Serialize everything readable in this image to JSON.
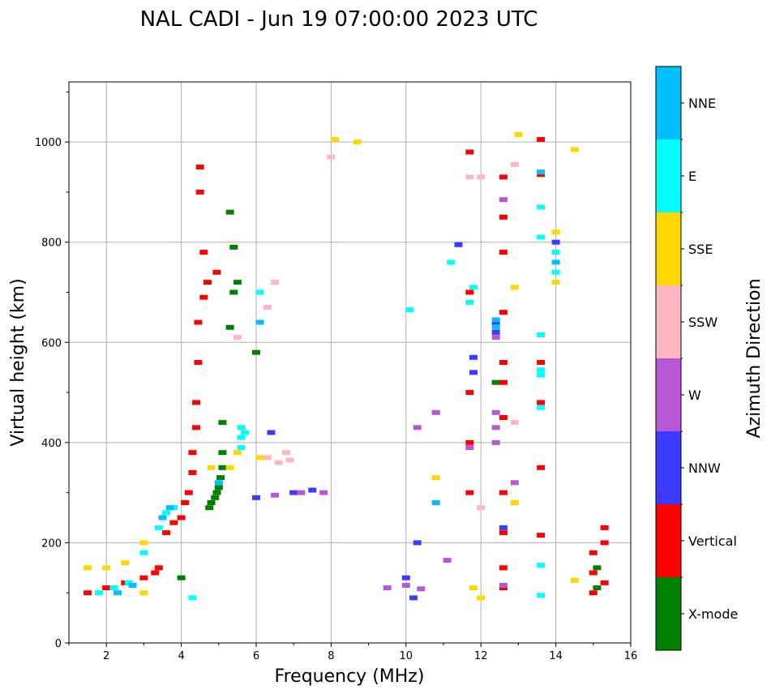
{
  "chart_data": {
    "type": "scatter",
    "title": "NAL CADI - Jun 19 07:00:00 2023 UTC",
    "xlabel": "Frequency (MHz)",
    "ylabel": "Virtual height (km)",
    "xlim": [
      1,
      16
    ],
    "ylim": [
      0,
      1120
    ],
    "x_ticks": [
      2,
      4,
      6,
      8,
      10,
      12,
      14,
      16
    ],
    "y_ticks": [
      0,
      200,
      400,
      600,
      800,
      1000
    ],
    "grid": true,
    "colorbar": {
      "label": "Azimuth Direction",
      "categories": [
        {
          "name": "X-mode",
          "color": "#008000"
        },
        {
          "name": "Vertical",
          "color": "#ff0000"
        },
        {
          "name": "NNW",
          "color": "#3b3bff"
        },
        {
          "name": "W",
          "color": "#b757d8"
        },
        {
          "name": "SSW",
          "color": "#ffb6c1"
        },
        {
          "name": "SSE",
          "color": "#ffd700"
        },
        {
          "name": "E",
          "color": "#00ffff"
        },
        {
          "name": "NNE",
          "color": "#00bfff"
        }
      ]
    },
    "series": [
      {
        "name": "X-mode",
        "points": [
          [
            4.0,
            130
          ],
          [
            4.75,
            270
          ],
          [
            4.8,
            280
          ],
          [
            4.9,
            290
          ],
          [
            4.95,
            300
          ],
          [
            5.0,
            310
          ],
          [
            5.05,
            330
          ],
          [
            5.1,
            350
          ],
          [
            5.1,
            380
          ],
          [
            5.1,
            440
          ],
          [
            5.3,
            630
          ],
          [
            5.4,
            700
          ],
          [
            5.5,
            720
          ],
          [
            5.4,
            790
          ],
          [
            5.3,
            860
          ],
          [
            6.0,
            580
          ],
          [
            12.4,
            520
          ],
          [
            15.1,
            110
          ],
          [
            15.1,
            150
          ]
        ]
      },
      {
        "name": "Vertical",
        "points": [
          [
            1.5,
            100
          ],
          [
            2.0,
            110
          ],
          [
            2.5,
            120
          ],
          [
            3.0,
            130
          ],
          [
            3.3,
            140
          ],
          [
            3.4,
            150
          ],
          [
            3.6,
            220
          ],
          [
            3.8,
            240
          ],
          [
            4.0,
            250
          ],
          [
            4.1,
            280
          ],
          [
            4.2,
            300
          ],
          [
            4.3,
            340
          ],
          [
            4.3,
            380
          ],
          [
            4.4,
            430
          ],
          [
            4.4,
            480
          ],
          [
            4.45,
            560
          ],
          [
            4.45,
            640
          ],
          [
            4.6,
            690
          ],
          [
            4.7,
            720
          ],
          [
            4.6,
            780
          ],
          [
            4.5,
            900
          ],
          [
            4.5,
            950
          ],
          [
            4.95,
            740
          ],
          [
            11.7,
            300
          ],
          [
            11.7,
            400
          ],
          [
            11.7,
            500
          ],
          [
            11.7,
            700
          ],
          [
            11.7,
            980
          ],
          [
            12.6,
            110
          ],
          [
            12.6,
            150
          ],
          [
            12.6,
            220
          ],
          [
            12.6,
            300
          ],
          [
            12.6,
            450
          ],
          [
            12.6,
            520
          ],
          [
            12.6,
            560
          ],
          [
            12.6,
            660
          ],
          [
            12.6,
            780
          ],
          [
            12.6,
            850
          ],
          [
            12.6,
            930
          ],
          [
            13.6,
            215
          ],
          [
            13.6,
            350
          ],
          [
            13.6,
            480
          ],
          [
            13.6,
            560
          ],
          [
            13.6,
            935
          ],
          [
            13.6,
            1005
          ],
          [
            15.0,
            100
          ],
          [
            15.0,
            140
          ],
          [
            15.0,
            180
          ],
          [
            15.3,
            200
          ],
          [
            15.3,
            230
          ],
          [
            15.3,
            120
          ]
        ]
      },
      {
        "name": "NNW",
        "points": [
          [
            6.0,
            290
          ],
          [
            6.4,
            420
          ],
          [
            7.0,
            300
          ],
          [
            7.5,
            305
          ],
          [
            10.0,
            130
          ],
          [
            10.2,
            90
          ],
          [
            10.3,
            200
          ],
          [
            11.4,
            795
          ],
          [
            11.8,
            540
          ],
          [
            11.8,
            570
          ],
          [
            12.4,
            620
          ],
          [
            12.4,
            640
          ],
          [
            12.6,
            230
          ],
          [
            14.0,
            800
          ]
        ]
      },
      {
        "name": "W",
        "points": [
          [
            9.5,
            110
          ],
          [
            10.0,
            115
          ],
          [
            10.4,
            108
          ],
          [
            6.5,
            295
          ],
          [
            7.2,
            300
          ],
          [
            7.8,
            300
          ],
          [
            10.3,
            430
          ],
          [
            10.8,
            460
          ],
          [
            11.1,
            165
          ],
          [
            11.7,
            390
          ],
          [
            12.4,
            400
          ],
          [
            12.4,
            430
          ],
          [
            12.4,
            460
          ],
          [
            12.4,
            610
          ],
          [
            12.6,
            885
          ],
          [
            12.9,
            320
          ],
          [
            12.6,
            115
          ]
        ]
      },
      {
        "name": "SSW",
        "points": [
          [
            6.3,
            370
          ],
          [
            6.6,
            360
          ],
          [
            6.8,
            380
          ],
          [
            6.9,
            365
          ],
          [
            6.5,
            720
          ],
          [
            6.3,
            670
          ],
          [
            5.5,
            610
          ],
          [
            8.0,
            970
          ],
          [
            11.7,
            930
          ],
          [
            12.9,
            440
          ],
          [
            12.9,
            955
          ],
          [
            12.0,
            270
          ],
          [
            12.0,
            930
          ]
        ]
      },
      {
        "name": "SSE",
        "points": [
          [
            1.5,
            150
          ],
          [
            2.0,
            150
          ],
          [
            2.5,
            160
          ],
          [
            3.0,
            200
          ],
          [
            3.0,
            100
          ],
          [
            4.8,
            350
          ],
          [
            5.3,
            350
          ],
          [
            5.5,
            380
          ],
          [
            6.1,
            370
          ],
          [
            8.1,
            1005
          ],
          [
            8.7,
            1000
          ],
          [
            10.8,
            330
          ],
          [
            11.8,
            110
          ],
          [
            12.0,
            90
          ],
          [
            12.9,
            710
          ],
          [
            12.9,
            280
          ],
          [
            13.0,
            1015
          ],
          [
            14.0,
            720
          ],
          [
            14.0,
            820
          ],
          [
            14.5,
            985
          ],
          [
            14.5,
            125
          ]
        ]
      },
      {
        "name": "E",
        "points": [
          [
            1.8,
            100
          ],
          [
            2.2,
            110
          ],
          [
            2.6,
            120
          ],
          [
            3.0,
            180
          ],
          [
            3.4,
            230
          ],
          [
            3.6,
            260
          ],
          [
            3.8,
            270
          ],
          [
            4.3,
            90
          ],
          [
            5.6,
            390
          ],
          [
            5.6,
            410
          ],
          [
            5.7,
            420
          ],
          [
            5.6,
            430
          ],
          [
            6.1,
            700
          ],
          [
            10.1,
            665
          ],
          [
            11.2,
            760
          ],
          [
            11.7,
            680
          ],
          [
            11.8,
            710
          ],
          [
            13.6,
            155
          ],
          [
            13.6,
            95
          ],
          [
            13.6,
            470
          ],
          [
            13.6,
            535
          ],
          [
            13.6,
            545
          ],
          [
            13.6,
            615
          ],
          [
            13.6,
            810
          ],
          [
            13.6,
            870
          ],
          [
            14.0,
            740
          ],
          [
            14.0,
            780
          ]
        ]
      },
      {
        "name": "NNE",
        "points": [
          [
            2.3,
            100
          ],
          [
            2.7,
            115
          ],
          [
            3.5,
            250
          ],
          [
            3.7,
            270
          ],
          [
            5.0,
            320
          ],
          [
            6.1,
            640
          ],
          [
            10.8,
            280
          ],
          [
            12.4,
            630
          ],
          [
            12.4,
            645
          ],
          [
            13.6,
            940
          ],
          [
            14.0,
            760
          ]
        ]
      }
    ]
  }
}
